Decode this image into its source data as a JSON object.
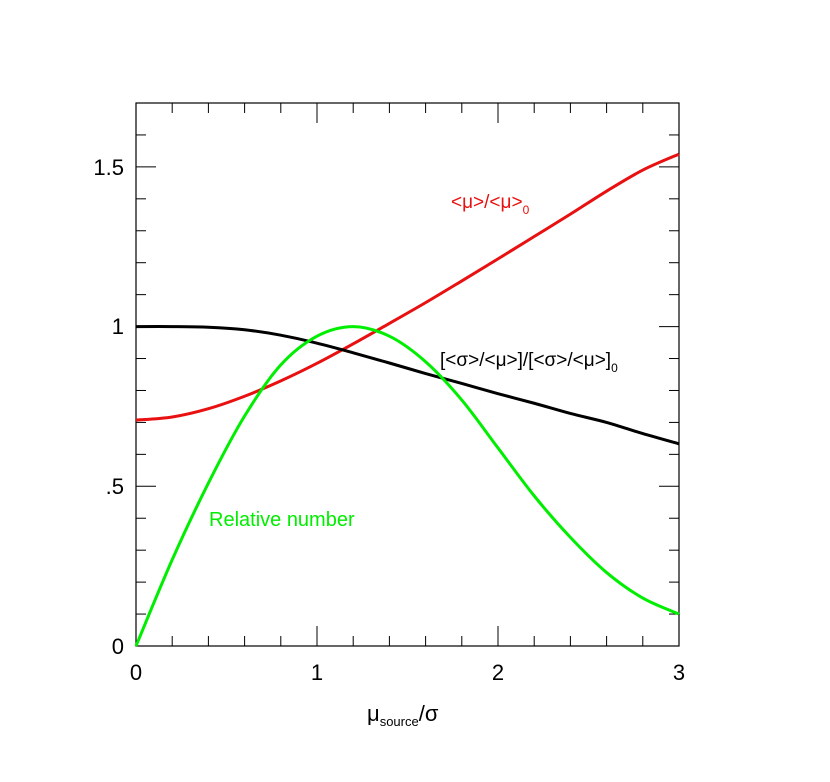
{
  "chart_data": {
    "type": "line",
    "xlabel": {
      "main": "μ",
      "sub": "source",
      "tail": "/σ"
    },
    "ylabel": "",
    "xlim": [
      0,
      3
    ],
    "ylim": [
      0,
      1.7
    ],
    "grid": false,
    "x_ticks": [
      {
        "value": 0,
        "label": "0"
      },
      {
        "value": 1,
        "label": "1"
      },
      {
        "value": 2,
        "label": "2"
      },
      {
        "value": 3,
        "label": "3"
      }
    ],
    "y_ticks": [
      {
        "value": 0,
        "label": "0"
      },
      {
        "value": 0.5,
        "label": ".5"
      },
      {
        "value": 1,
        "label": "1"
      },
      {
        "value": 1.5,
        "label": "1.5"
      }
    ],
    "series": [
      {
        "key": "mean_ratio",
        "color": "#e81010",
        "label_main": "<μ>/<μ>",
        "label_sub": "0",
        "x": [
          0,
          0.2,
          0.4,
          0.6,
          0.8,
          1.0,
          1.2,
          1.4,
          1.6,
          1.8,
          2.0,
          2.2,
          2.4,
          2.6,
          2.8,
          3.0
        ],
        "y": [
          0.707,
          0.717,
          0.743,
          0.782,
          0.83,
          0.885,
          0.946,
          1.01,
          1.075,
          1.143,
          1.212,
          1.282,
          1.352,
          1.424,
          1.49,
          1.54
        ]
      },
      {
        "key": "width_ratio",
        "color": "#000000",
        "label_main": "[<σ>/<μ>]/[<σ>/<μ>]",
        "label_sub": "0",
        "x": [
          0,
          0.2,
          0.4,
          0.6,
          0.8,
          1.0,
          1.2,
          1.4,
          1.6,
          1.8,
          2.0,
          2.2,
          2.4,
          2.6,
          2.8,
          3.0
        ],
        "y": [
          1.0,
          1.0,
          0.998,
          0.99,
          0.973,
          0.948,
          0.918,
          0.886,
          0.853,
          0.822,
          0.79,
          0.76,
          0.728,
          0.7,
          0.665,
          0.633
        ]
      },
      {
        "key": "relative_number",
        "color": "#00ee00",
        "label_main": "Relative number",
        "label_sub": "",
        "x": [
          0,
          0.2,
          0.4,
          0.6,
          0.8,
          1.0,
          1.2,
          1.4,
          1.6,
          1.8,
          2.0,
          2.2,
          2.4,
          2.6,
          2.8,
          3.0
        ],
        "y": [
          0.0,
          0.27,
          0.51,
          0.72,
          0.88,
          0.97,
          1.0,
          0.97,
          0.89,
          0.77,
          0.62,
          0.47,
          0.34,
          0.23,
          0.15,
          0.1
        ]
      }
    ]
  }
}
